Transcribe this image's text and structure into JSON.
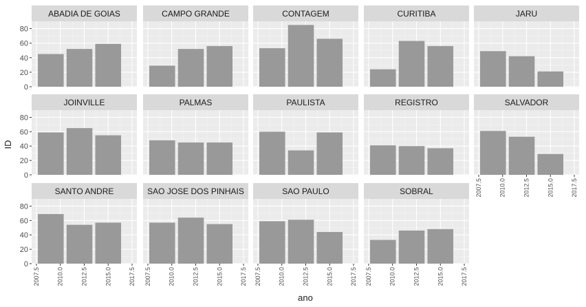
{
  "chart_data": {
    "type": "bar",
    "xlabel": "ano",
    "ylabel": "ID",
    "ylim": [
      0,
      90
    ],
    "y_ticks": [
      0,
      20,
      40,
      60,
      80
    ],
    "x_ticks": [
      2007.5,
      2010.0,
      2012.5,
      2015.0,
      2017.5
    ],
    "x_tick_labels": [
      "2007.5",
      "2010.0",
      "2012.5",
      "2015.0",
      "2017.5"
    ],
    "xlim": [
      2007,
      2018
    ],
    "bar_years": [
      2009,
      2012,
      2015
    ],
    "bar_color": "#999999",
    "panel_bg": "#ebebeb",
    "strip_bg": "#d9d9d9",
    "grid": true,
    "panels": [
      {
        "name": "ABADIA DE GOIAS",
        "values": [
          45,
          52,
          59
        ]
      },
      {
        "name": "CAMPO GRANDE",
        "values": [
          29,
          52,
          56
        ]
      },
      {
        "name": "CONTAGEM",
        "values": [
          53,
          85,
          66
        ]
      },
      {
        "name": "CURITIBA",
        "values": [
          24,
          63,
          56
        ]
      },
      {
        "name": "JARU",
        "values": [
          49,
          42,
          21
        ]
      },
      {
        "name": "JOINVILLE",
        "values": [
          59,
          65,
          55
        ]
      },
      {
        "name": "PALMAS",
        "values": [
          48,
          45,
          45
        ]
      },
      {
        "name": "PAULISTA",
        "values": [
          60,
          34,
          59
        ]
      },
      {
        "name": "REGISTRO",
        "values": [
          41,
          40,
          37
        ]
      },
      {
        "name": "SALVADOR",
        "values": [
          61,
          53,
          29
        ]
      },
      {
        "name": "SANTO ANDRE",
        "values": [
          69,
          54,
          57
        ]
      },
      {
        "name": "SAO JOSE DOS PINHAIS",
        "values": [
          57,
          64,
          55
        ]
      },
      {
        "name": "SAO PAULO",
        "values": [
          59,
          61,
          44
        ]
      },
      {
        "name": "SOBRAL",
        "values": [
          33,
          46,
          48
        ]
      }
    ]
  }
}
